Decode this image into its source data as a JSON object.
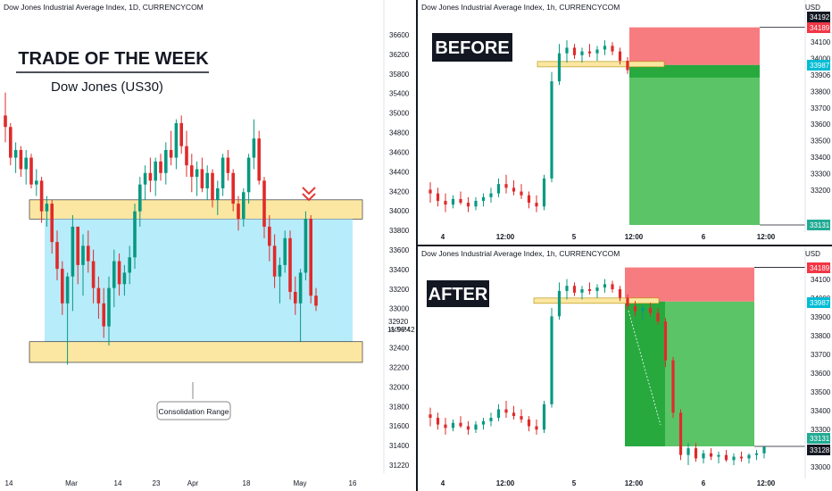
{
  "left_chart": {
    "header": "Dow Jones Industrial Average Index, 1D, CURRENCYCOM",
    "headline": "TRADE OF THE WEEK",
    "subheadline": "Dow Jones (US30)",
    "range_label": "Consolidation Range",
    "price_axis": [
      "36600",
      "36200",
      "35800",
      "35400",
      "35000",
      "34800",
      "34600",
      "34400",
      "34200",
      "34000",
      "33800",
      "33600",
      "33400",
      "33200",
      "33000",
      "32920",
      "32600",
      "32400",
      "32200",
      "32000",
      "31800",
      "31600",
      "31400",
      "31220"
    ],
    "price_axis_current": "32920",
    "price_axis_timer": "11:56:42",
    "time_axis": [
      "14",
      "Mar",
      "14",
      "23",
      "Apr",
      "18",
      "May",
      "16"
    ],
    "colors": {
      "up": "#089981",
      "up_fill": "#0ea34a",
      "down": "#e02a2a",
      "zone_yellow": "#fbe7a1",
      "zone_blue": "#b7ecfb",
      "arrow": "#e53935"
    }
  },
  "before_chart": {
    "header": "Dow Jones Industrial Average Index, 1h, CURRENCYCOM",
    "label": "BEFORE",
    "currency": "USD",
    "price_axis": [
      "34100",
      "34000",
      "33906",
      "33800",
      "33700",
      "33600",
      "33500",
      "33400",
      "33300",
      "33200"
    ],
    "badges": {
      "top": "34192",
      "stop": "34189",
      "entry": "33987",
      "target": "33131"
    },
    "time_axis": [
      "4",
      "12:00",
      "5",
      "12:00",
      "6",
      "12:00"
    ]
  },
  "after_chart": {
    "header": "Dow Jones Industrial Average Index, 1h, CURRENCYCOM",
    "label": "AFTER",
    "currency": "USD",
    "price_axis": [
      "34100",
      "34000",
      "33900",
      "33800",
      "33700",
      "33600",
      "33500",
      "33400",
      "33300",
      "33200",
      "33000"
    ],
    "badges": {
      "stop": "34189",
      "entry": "33987",
      "target": "33131",
      "current": "33128"
    },
    "time_axis": [
      "4",
      "12:00",
      "5",
      "12:00",
      "6",
      "12:00"
    ]
  },
  "chart_data": [
    {
      "type": "candlestick",
      "title": "Dow Jones Industrial Average Index, 1D, CURRENCYCOM",
      "timeframe": "1D",
      "zones": [
        {
          "label": "",
          "kind": "resistance",
          "low": 34050,
          "high": 34300
        },
        {
          "label": "Consolidation Range",
          "kind": "range",
          "low": 32450,
          "high": 34050
        },
        {
          "label": "",
          "kind": "support",
          "low": 32180,
          "high": 32450
        }
      ],
      "candles": [
        [
          35400,
          35700,
          35050,
          35250
        ],
        [
          35250,
          35300,
          34750,
          34850
        ],
        [
          34850,
          35050,
          34650,
          34950
        ],
        [
          34950,
          35000,
          34600,
          34700
        ],
        [
          34700,
          34950,
          34500,
          34850
        ],
        [
          34850,
          34900,
          34450,
          34500
        ],
        [
          34500,
          34700,
          34350,
          34550
        ],
        [
          34550,
          34600,
          34000,
          34150
        ],
        [
          34150,
          34350,
          33950,
          34250
        ],
        [
          34250,
          34300,
          33600,
          33750
        ],
        [
          33750,
          33900,
          33250,
          33400
        ],
        [
          33400,
          33500,
          32800,
          32950
        ],
        [
          32950,
          33350,
          32150,
          33300
        ],
        [
          33300,
          34100,
          32850,
          33950
        ],
        [
          33950,
          33950,
          33200,
          33450
        ],
        [
          33450,
          33850,
          33050,
          33700
        ],
        [
          33700,
          33900,
          33350,
          33500
        ],
        [
          33500,
          33650,
          32950,
          33150
        ],
        [
          33150,
          33300,
          32750,
          32950
        ],
        [
          32950,
          33150,
          32500,
          32650
        ],
        [
          32650,
          33300,
          32400,
          33150
        ],
        [
          33150,
          33650,
          32900,
          33500
        ],
        [
          33500,
          33600,
          33050,
          33200
        ],
        [
          33200,
          33450,
          33050,
          33350
        ],
        [
          33350,
          33700,
          33200,
          33550
        ],
        [
          33550,
          34250,
          33400,
          34150
        ],
        [
          34150,
          34600,
          33950,
          34500
        ],
        [
          34500,
          34750,
          34300,
          34650
        ],
        [
          34650,
          34850,
          34400,
          34550
        ],
        [
          34550,
          34850,
          34350,
          34800
        ],
        [
          34800,
          34900,
          34550,
          34650
        ],
        [
          34650,
          35050,
          34500,
          34950
        ],
        [
          34950,
          35200,
          34750,
          34850
        ],
        [
          34850,
          35350,
          34700,
          35300
        ],
        [
          35300,
          35400,
          34900,
          35000
        ],
        [
          35000,
          35200,
          34600,
          34750
        ],
        [
          34750,
          34900,
          34400,
          34600
        ],
        [
          34600,
          34800,
          34350,
          34700
        ],
        [
          34700,
          34850,
          34400,
          34450
        ],
        [
          34450,
          34750,
          34300,
          34650
        ],
        [
          34650,
          34700,
          34200,
          34300
        ],
        [
          34300,
          34550,
          34100,
          34450
        ],
        [
          34450,
          34900,
          34350,
          34850
        ],
        [
          34850,
          34950,
          34550,
          34650
        ],
        [
          34650,
          34700,
          34150,
          34250
        ],
        [
          34250,
          34350,
          33900,
          34050
        ],
        [
          34050,
          34450,
          33950,
          34400
        ],
        [
          34400,
          34900,
          34250,
          34850
        ],
        [
          34850,
          35350,
          34700,
          35100
        ],
        [
          35100,
          35200,
          34500,
          34550
        ],
        [
          34550,
          34600,
          33800,
          33950
        ],
        [
          33950,
          34100,
          33500,
          33700
        ],
        [
          33700,
          33850,
          33150,
          33300
        ],
        [
          33300,
          33550,
          32950,
          33450
        ],
        [
          33450,
          33900,
          33350,
          33800
        ],
        [
          33800,
          33900,
          33000,
          33100
        ],
        [
          33100,
          33300,
          32800,
          32950
        ],
        [
          32950,
          33400,
          32450,
          33350
        ],
        [
          33350,
          34150,
          33250,
          34050
        ],
        [
          34050,
          34100,
          32950,
          33050
        ],
        [
          33050,
          33150,
          32850,
          32920
        ]
      ]
    },
    {
      "type": "candlestick",
      "title": "Dow Jones Industrial Average Index, 1h, CURRENCYCOM",
      "timeframe": "1h",
      "label": "BEFORE",
      "trade": {
        "direction": "short",
        "stop": 34189,
        "entry": 33987,
        "target": 33131
      },
      "candles": [
        [
          33320,
          33360,
          33250,
          33300
        ],
        [
          33300,
          33330,
          33230,
          33260
        ],
        [
          33260,
          33300,
          33200,
          33240
        ],
        [
          33240,
          33290,
          33220,
          33270
        ],
        [
          33270,
          33310,
          33240,
          33250
        ],
        [
          33250,
          33280,
          33200,
          33230
        ],
        [
          33230,
          33280,
          33210,
          33260
        ],
        [
          33260,
          33300,
          33230,
          33280
        ],
        [
          33280,
          33330,
          33250,
          33300
        ],
        [
          33300,
          33380,
          33280,
          33350
        ],
        [
          33350,
          33400,
          33300,
          33330
        ],
        [
          33330,
          33370,
          33290,
          33310
        ],
        [
          33310,
          33350,
          33270,
          33290
        ],
        [
          33290,
          33310,
          33220,
          33250
        ],
        [
          33250,
          33290,
          33200,
          33230
        ],
        [
          33230,
          33400,
          33210,
          33380
        ],
        [
          33380,
          33950,
          33360,
          33900
        ],
        [
          33900,
          34100,
          33880,
          34050
        ],
        [
          34050,
          34120,
          34000,
          34080
        ],
        [
          34080,
          34100,
          34020,
          34040
        ],
        [
          34040,
          34080,
          34000,
          34060
        ],
        [
          34060,
          34100,
          34030,
          34050
        ],
        [
          34050,
          34090,
          34010,
          34070
        ],
        [
          34070,
          34120,
          34040,
          34090
        ],
        [
          34090,
          34110,
          34040,
          34060
        ],
        [
          34060,
          34080,
          33990,
          34010
        ],
        [
          34010,
          34030,
          33940,
          33960
        ]
      ]
    },
    {
      "type": "candlestick",
      "title": "Dow Jones Industrial Average Index, 1h, CURRENCYCOM",
      "timeframe": "1h",
      "label": "AFTER",
      "trade": {
        "direction": "short",
        "stop": 34189,
        "entry": 33987,
        "target": 33131
      },
      "current_price": 33128,
      "candles": [
        [
          33320,
          33360,
          33250,
          33300
        ],
        [
          33300,
          33330,
          33230,
          33260
        ],
        [
          33260,
          33300,
          33200,
          33240
        ],
        [
          33240,
          33290,
          33220,
          33270
        ],
        [
          33270,
          33310,
          33240,
          33250
        ],
        [
          33250,
          33280,
          33200,
          33230
        ],
        [
          33230,
          33280,
          33210,
          33260
        ],
        [
          33260,
          33300,
          33230,
          33280
        ],
        [
          33280,
          33330,
          33250,
          33300
        ],
        [
          33300,
          33380,
          33280,
          33350
        ],
        [
          33350,
          33400,
          33300,
          33330
        ],
        [
          33330,
          33370,
          33290,
          33310
        ],
        [
          33310,
          33350,
          33270,
          33290
        ],
        [
          33290,
          33310,
          33220,
          33250
        ],
        [
          33250,
          33290,
          33200,
          33230
        ],
        [
          33230,
          33400,
          33210,
          33380
        ],
        [
          33380,
          33950,
          33360,
          33900
        ],
        [
          33900,
          34100,
          33880,
          34050
        ],
        [
          34050,
          34120,
          34000,
          34080
        ],
        [
          34080,
          34100,
          34020,
          34040
        ],
        [
          34040,
          34080,
          34000,
          34060
        ],
        [
          34060,
          34100,
          34030,
          34050
        ],
        [
          34050,
          34090,
          34010,
          34070
        ],
        [
          34070,
          34120,
          34040,
          34090
        ],
        [
          34090,
          34110,
          34040,
          34060
        ],
        [
          34060,
          34080,
          33990,
          34010
        ],
        [
          34010,
          34030,
          33940,
          33960
        ],
        [
          33960,
          33990,
          33900,
          33930
        ],
        [
          33930,
          33970,
          33880,
          33950
        ],
        [
          33950,
          33980,
          33900,
          33920
        ],
        [
          33920,
          33950,
          33850,
          33870
        ],
        [
          33870,
          33890,
          33600,
          33640
        ],
        [
          33640,
          33660,
          33300,
          33330
        ],
        [
          33330,
          33350,
          33050,
          33080
        ],
        [
          33080,
          33150,
          33020,
          33120
        ],
        [
          33120,
          33150,
          33040,
          33060
        ],
        [
          33060,
          33110,
          33030,
          33090
        ],
        [
          33090,
          33120,
          33050,
          33070
        ],
        [
          33070,
          33100,
          33030,
          33080
        ],
        [
          33080,
          33110,
          33040,
          33050
        ],
        [
          33050,
          33090,
          33020,
          33070
        ],
        [
          33070,
          33100,
          33040,
          33060
        ],
        [
          33060,
          33090,
          33030,
          33080
        ],
        [
          33080,
          33110,
          33050,
          33090
        ],
        [
          33090,
          33120,
          33060,
          33128
        ]
      ]
    }
  ]
}
